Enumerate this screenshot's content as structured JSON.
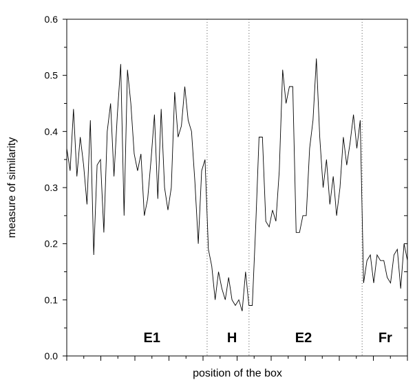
{
  "chart_data": {
    "type": "line",
    "title": "",
    "xlabel": "position of the box",
    "ylabel": "measure of similarity",
    "ylim": [
      0,
      0.6
    ],
    "y_ticks": [
      "0.0",
      "0.1",
      "0.2",
      "0.3",
      "0.4",
      "0.5",
      "0.6"
    ],
    "grid": false,
    "series": [
      {
        "values": [
          0.37,
          0.33,
          0.44,
          0.32,
          0.39,
          0.34,
          0.27,
          0.42,
          0.18,
          0.34,
          0.35,
          0.22,
          0.4,
          0.45,
          0.32,
          0.43,
          0.52,
          0.25,
          0.51,
          0.45,
          0.36,
          0.33,
          0.36,
          0.25,
          0.28,
          0.35,
          0.43,
          0.28,
          0.44,
          0.3,
          0.26,
          0.3,
          0.47,
          0.39,
          0.41,
          0.48,
          0.42,
          0.4,
          0.31,
          0.2,
          0.33,
          0.35,
          0.19,
          0.16,
          0.1,
          0.15,
          0.12,
          0.1,
          0.14,
          0.1,
          0.09,
          0.1,
          0.08,
          0.15,
          0.09,
          0.09,
          0.23,
          0.39,
          0.39,
          0.24,
          0.23,
          0.26,
          0.24,
          0.33,
          0.51,
          0.45,
          0.48,
          0.48,
          0.22,
          0.22,
          0.25,
          0.25,
          0.37,
          0.42,
          0.53,
          0.39,
          0.3,
          0.35,
          0.27,
          0.32,
          0.25,
          0.3,
          0.39,
          0.34,
          0.38,
          0.43,
          0.37,
          0.42,
          0.13,
          0.17,
          0.18,
          0.13,
          0.18,
          0.17,
          0.17,
          0.14,
          0.13,
          0.18,
          0.19,
          0.12,
          0.2,
          0.17
        ]
      }
    ],
    "regions": [
      {
        "label": "E1"
      },
      {
        "label": "H"
      },
      {
        "label": "E2"
      },
      {
        "label": "Fr"
      }
    ]
  }
}
